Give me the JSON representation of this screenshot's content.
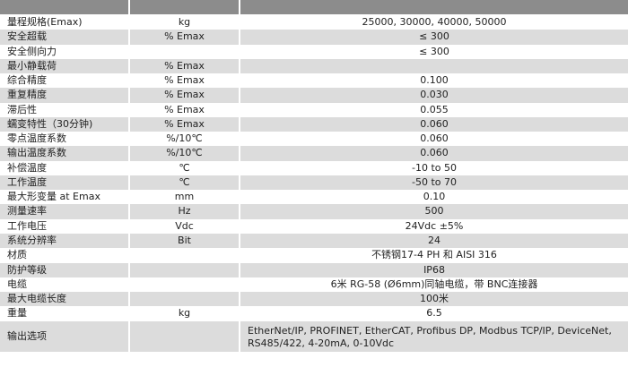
{
  "rows": [
    {
      "param": "量程规格(Emax)",
      "unit": "kg",
      "value": "25000, 30000, 40000, 50000"
    },
    {
      "param": "安全超载",
      "unit": "% Emax",
      "value": "≤ 300"
    },
    {
      "param": "安全侧向力",
      "unit": "",
      "value": "≤ 300"
    },
    {
      "param": "最小静载荷",
      "unit": "% Emax",
      "value": ""
    },
    {
      "param": "综合精度",
      "unit": "% Emax",
      "value": "0.100"
    },
    {
      "param": "重复精度",
      "unit": "% Emax",
      "value": "0.030"
    },
    {
      "param": "滞后性",
      "unit": "% Emax",
      "value": "0.055"
    },
    {
      "param": "蠕变特性（30分钟)",
      "unit": "% Emax",
      "value": "0.060"
    },
    {
      "param": "零点温度系数",
      "unit": "%/10℃",
      "value": "0.060"
    },
    {
      "param": "输出温度系数",
      "unit": "%/10℃",
      "value": "0.060"
    },
    {
      "param": "补偿温度",
      "unit": "℃",
      "value": "-10 to 50"
    },
    {
      "param": "工作温度",
      "unit": "℃",
      "value": "-50 to 70"
    },
    {
      "param": "最大形变量 at Emax",
      "unit": "mm",
      "value": "0.10"
    },
    {
      "param": "测量速率",
      "unit": "Hz",
      "value": "500"
    },
    {
      "param": "工作电压",
      "unit": "Vdc",
      "value": "24Vdc ±5%"
    },
    {
      "param": "系统分辨率",
      "unit": "Bit",
      "value": "24"
    },
    {
      "param": "材质",
      "unit": "",
      "value": "不锈钢17-4 PH 和 AISI 316"
    },
    {
      "param": "防护等级",
      "unit": "",
      "value": "IP68"
    },
    {
      "param": "电缆",
      "unit": "",
      "value": "6米 RG-58 (Ø6mm)同轴电缆，带 BNC连接器"
    },
    {
      "param": "最大电缆长度",
      "unit": "",
      "value": "100米"
    },
    {
      "param": "重量",
      "unit": "kg",
      "value": "6.5"
    },
    {
      "param": "输出选项",
      "unit": "",
      "value": "EtherNet/IP, PROFINET, EtherCAT, Profibus DP, Modbus TCP/IP, DeviceNet, RS485/422, 4-20mA, 0-10Vdc"
    }
  ]
}
